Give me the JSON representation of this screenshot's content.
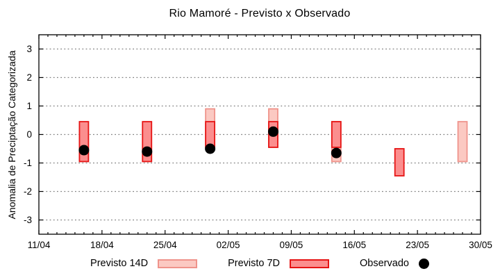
{
  "title": "Rio Mamoré - Previsto x Observado",
  "axes": {
    "ylabel": "Anomalia de Preciptação Categorizada",
    "ylim": [
      -3.5,
      3.5
    ],
    "y_ticks": [
      3,
      2,
      1,
      0,
      -1,
      -2,
      -3
    ],
    "x_tick_labels": [
      "11/04",
      "18/04",
      "25/04",
      "02/05",
      "09/05",
      "16/05",
      "23/05",
      "30/05"
    ],
    "x_total_days": 49,
    "x_major_every_days": 7,
    "grid_color": "#7f7f7f",
    "grid_style": "dotted"
  },
  "legend": {
    "items": [
      {
        "label": "Previsto 14D",
        "swatch": "box",
        "fill": "#fbc9c2",
        "border": "#ef938b"
      },
      {
        "label": "Previsto 7D",
        "swatch": "box",
        "fill": "#fb8e8e",
        "border": "#e61414"
      },
      {
        "label": "Observado",
        "swatch": "dot",
        "fill": "#000000"
      }
    ]
  },
  "chart_data": {
    "type": "bar",
    "subtype": "forecast-range-bars-with-observed-dots",
    "title": "Rio Mamoré - Previsto x Observado",
    "xlabel": "",
    "ylabel": "Anomalia de Preciptação Categorizada",
    "ylim": [
      -3.5,
      3.5
    ],
    "grid": "horizontal dotted lines at integer y values",
    "legend_position": "below",
    "x_axis_dates": [
      "11/04",
      "18/04",
      "25/04",
      "02/05",
      "09/05",
      "16/05",
      "23/05",
      "30/05"
    ],
    "series": [
      {
        "name": "Previsto 14D",
        "type": "range-bar",
        "fill": "#fbc9c2",
        "border": "#ef938b",
        "points": [
          {
            "date": "30/04",
            "day": 19,
            "low": -0.45,
            "high": 0.9
          },
          {
            "date": "07/05",
            "day": 26,
            "low": -0.45,
            "high": 0.9
          },
          {
            "date": "14/05",
            "day": 33,
            "low": -0.95,
            "high": 0.45
          },
          {
            "date": "28/05",
            "day": 47,
            "low": -0.95,
            "high": 0.45
          }
        ]
      },
      {
        "name": "Previsto 7D",
        "type": "range-bar",
        "fill": "#fb8e8e",
        "border": "#e61414",
        "points": [
          {
            "date": "16/04",
            "day": 5,
            "low": -0.95,
            "high": 0.45
          },
          {
            "date": "23/04",
            "day": 12,
            "low": -0.95,
            "high": 0.45
          },
          {
            "date": "30/04",
            "day": 19,
            "low": -0.45,
            "high": 0.45
          },
          {
            "date": "07/05",
            "day": 26,
            "low": -0.45,
            "high": 0.45
          },
          {
            "date": "14/05",
            "day": 33,
            "low": -0.45,
            "high": 0.45
          },
          {
            "date": "21/05",
            "day": 40,
            "low": -1.45,
            "high": -0.5
          }
        ]
      },
      {
        "name": "Observado",
        "type": "scatter",
        "color": "#000000",
        "points": [
          {
            "date": "16/04",
            "day": 5,
            "value": -0.55
          },
          {
            "date": "23/04",
            "day": 12,
            "value": -0.6
          },
          {
            "date": "30/04",
            "day": 19,
            "value": -0.5
          },
          {
            "date": "07/05",
            "day": 26,
            "value": 0.1
          },
          {
            "date": "14/05",
            "day": 33,
            "value": -0.65
          }
        ]
      }
    ]
  }
}
